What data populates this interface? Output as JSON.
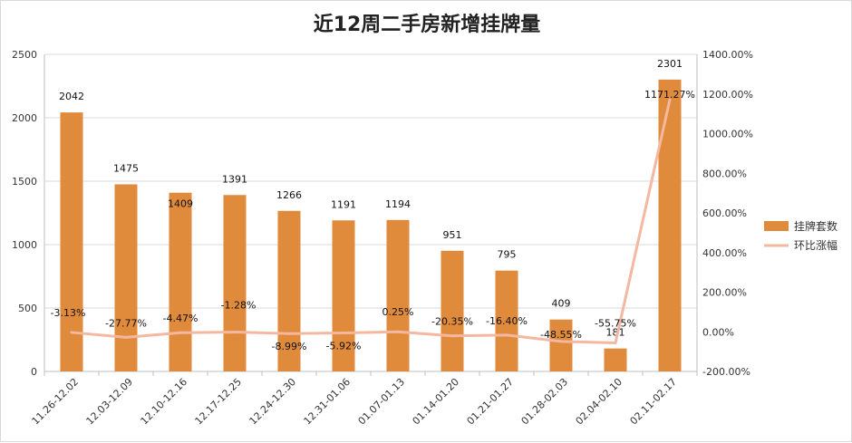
{
  "chart_data": {
    "type": "bar",
    "title": "近12周二手房新增挂牌量",
    "categories": [
      "11.26-12.02",
      "12.03-12.09",
      "12.10-12.16",
      "12.17-12.25",
      "12.24-12.30",
      "12.31-01.06",
      "01.07-01.13",
      "01.14-01.20",
      "01.21-01.27",
      "01.28-02.03",
      "02.04-02.10",
      "02.11-02.17"
    ],
    "series": [
      {
        "name": "挂牌套数",
        "kind": "bar",
        "axis": "left",
        "color": "#E08A3C",
        "values": [
          2042,
          1475,
          1409,
          1391,
          1266,
          1191,
          1194,
          951,
          795,
          409,
          181,
          2301
        ],
        "labels": [
          "2042",
          "1475",
          "1409",
          "1391",
          "1266",
          "1191",
          "1194",
          "951",
          "795",
          "409",
          "181",
          "2301"
        ]
      },
      {
        "name": "环比涨幅",
        "kind": "line",
        "axis": "right",
        "color": "#F4B8A0",
        "values": [
          -3.13,
          -27.77,
          -4.47,
          -1.28,
          -8.99,
          -5.92,
          0.25,
          -20.35,
          -16.4,
          -48.55,
          -55.75,
          1171.27
        ],
        "labels": [
          "-3.13%",
          "-27.77%",
          "-4.47%",
          "-1.28%",
          "-8.99%",
          "-5.92%",
          "0.25%",
          "-20.35%",
          "-16.40%",
          "-48.55%",
          "-55.75%",
          "1171.27%"
        ]
      }
    ],
    "ylim_left": [
      0,
      2500
    ],
    "yticks_left": [
      "0",
      "500",
      "1000",
      "1500",
      "2000",
      "2500"
    ],
    "ylim_right": [
      -200,
      1400
    ],
    "yticks_right": [
      "-200.00%",
      "0.00%",
      "200.00%",
      "400.00%",
      "600.00%",
      "800.00%",
      "1000.00%",
      "1200.00%",
      "1400.00%"
    ],
    "grid": true,
    "legend_position": "right"
  }
}
